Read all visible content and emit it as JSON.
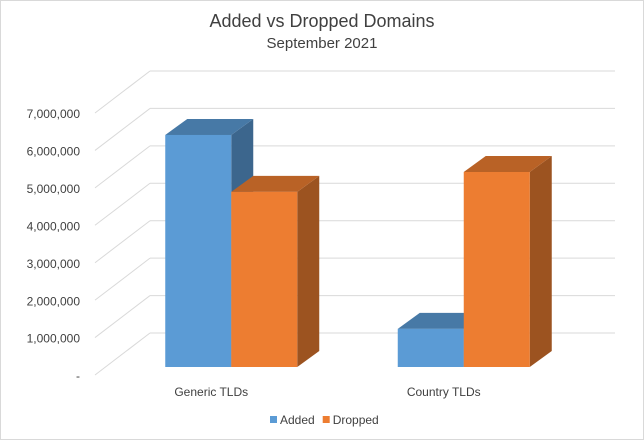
{
  "chart_data": {
    "type": "bar3d",
    "title": "Added vs Dropped Domains",
    "subtitle": "September 2021",
    "categories": [
      "Generic TLDs",
      "Country TLDs"
    ],
    "series": [
      {
        "name": "Added",
        "color": "#5b9bd5",
        "values": [
          6200000,
          1020000
        ]
      },
      {
        "name": "Dropped",
        "color": "#ed7d31",
        "values": [
          4680000,
          5210000
        ]
      }
    ],
    "ylim": [
      0,
      7000000
    ],
    "yticks": [
      {
        "value": 0,
        "label": "-"
      },
      {
        "value": 1000000,
        "label": "1,000,000"
      },
      {
        "value": 2000000,
        "label": "2,000,000"
      },
      {
        "value": 3000000,
        "label": "3,000,000"
      },
      {
        "value": 4000000,
        "label": "4,000,000"
      },
      {
        "value": 5000000,
        "label": "5,000,000"
      },
      {
        "value": 6000000,
        "label": "6,000,000"
      },
      {
        "value": 7000000,
        "label": "7,000,000"
      }
    ],
    "grid": true,
    "legend": "bottom"
  }
}
